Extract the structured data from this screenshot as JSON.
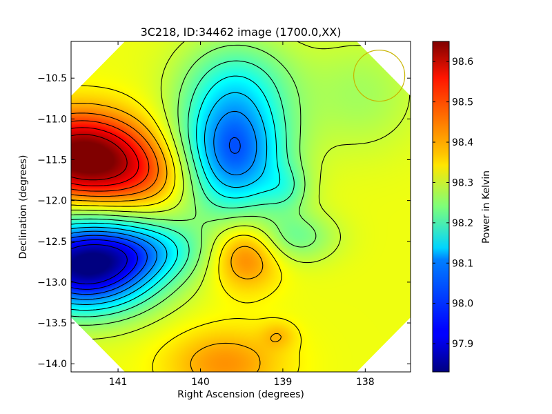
{
  "chart_data": {
    "type": "heatmap",
    "title": "3C218, ID:34462 image (1700.0,XX)",
    "xlabel": "Right Ascension (degrees)",
    "ylabel": "Declination (degrees)",
    "colorbar_label": "Power in Kelvin",
    "xlim": [
      141.57,
      137.45
    ],
    "ylim": [
      -14.1,
      -10.05
    ],
    "x_ticks": [
      {
        "value": 141,
        "label": "141"
      },
      {
        "value": 140,
        "label": "140"
      },
      {
        "value": 139,
        "label": "139"
      },
      {
        "value": 138,
        "label": "138"
      }
    ],
    "y_ticks": [
      {
        "value": -10.5,
        "label": "−10.5"
      },
      {
        "value": -11.0,
        "label": "−11.0"
      },
      {
        "value": -11.5,
        "label": "−11.5"
      },
      {
        "value": -12.0,
        "label": "−12.0"
      },
      {
        "value": -12.5,
        "label": "−12.5"
      },
      {
        "value": -13.0,
        "label": "−13.0"
      },
      {
        "value": -13.5,
        "label": "−13.5"
      },
      {
        "value": -14.0,
        "label": "−14.0"
      }
    ],
    "colorbar_range": [
      97.83,
      98.65
    ],
    "colorbar_ticks": [
      {
        "value": 97.9,
        "label": "97.9"
      },
      {
        "value": 98.0,
        "label": "98.0"
      },
      {
        "value": 98.1,
        "label": "98.1"
      },
      {
        "value": 98.2,
        "label": "98.2"
      },
      {
        "value": 98.3,
        "label": "98.3"
      },
      {
        "value": 98.4,
        "label": "98.4"
      },
      {
        "value": 98.5,
        "label": "98.5"
      },
      {
        "value": 98.6,
        "label": "98.6"
      }
    ],
    "colormap": "jet",
    "background_level": 98.33,
    "features": [
      {
        "kind": "max",
        "ra": 141.45,
        "dec": -11.45,
        "amp": 0.34,
        "sx": 0.55,
        "sy": 0.36
      },
      {
        "kind": "ridge",
        "ra": 140.7,
        "dec": -11.7,
        "amp": 0.1,
        "sx": 0.5,
        "sy": 0.3
      },
      {
        "kind": "min",
        "ra": 141.4,
        "dec": -12.8,
        "amp": -0.5,
        "sx": 0.6,
        "sy": 0.38
      },
      {
        "kind": "valley",
        "ra": 140.6,
        "dec": -12.6,
        "amp": -0.12,
        "sx": 0.5,
        "sy": 0.25
      },
      {
        "kind": "min",
        "ra": 139.6,
        "dec": -11.4,
        "amp": -0.33,
        "sx": 0.45,
        "sy": 0.55
      },
      {
        "kind": "valley",
        "ra": 139.55,
        "dec": -10.5,
        "amp": -0.1,
        "sx": 0.5,
        "sy": 0.4
      },
      {
        "kind": "max",
        "ra": 139.45,
        "dec": -12.65,
        "amp": 0.14,
        "sx": 0.3,
        "sy": 0.3
      },
      {
        "kind": "max",
        "ra": 139.7,
        "dec": -14.0,
        "amp": 0.1,
        "sx": 0.5,
        "sy": 0.3
      },
      {
        "kind": "min",
        "ra": 138.85,
        "dec": -12.45,
        "amp": -0.1,
        "sx": 0.35,
        "sy": 0.22
      },
      {
        "kind": "min",
        "ra": 138.95,
        "dec": -11.85,
        "amp": -0.07,
        "sx": 0.2,
        "sy": 0.2
      },
      {
        "kind": "valley",
        "ra": 138.05,
        "dec": -10.7,
        "amp": -0.06,
        "sx": 0.5,
        "sy": 0.5
      },
      {
        "kind": "max",
        "ra": 139.05,
        "dec": -13.65,
        "amp": 0.05,
        "sx": 0.15,
        "sy": 0.12
      }
    ],
    "contour_levels": [
      97.9,
      97.95,
      98.0,
      98.05,
      98.1,
      98.15,
      98.2,
      98.25,
      98.3,
      98.35,
      98.4,
      98.45,
      98.5,
      98.55,
      98.6
    ],
    "beam_circle": {
      "ra": 137.83,
      "dec": -10.47,
      "radius_deg": 0.31,
      "color": "#c8b400"
    },
    "valid_region": "octagon",
    "grid": false,
    "legend": "none"
  }
}
